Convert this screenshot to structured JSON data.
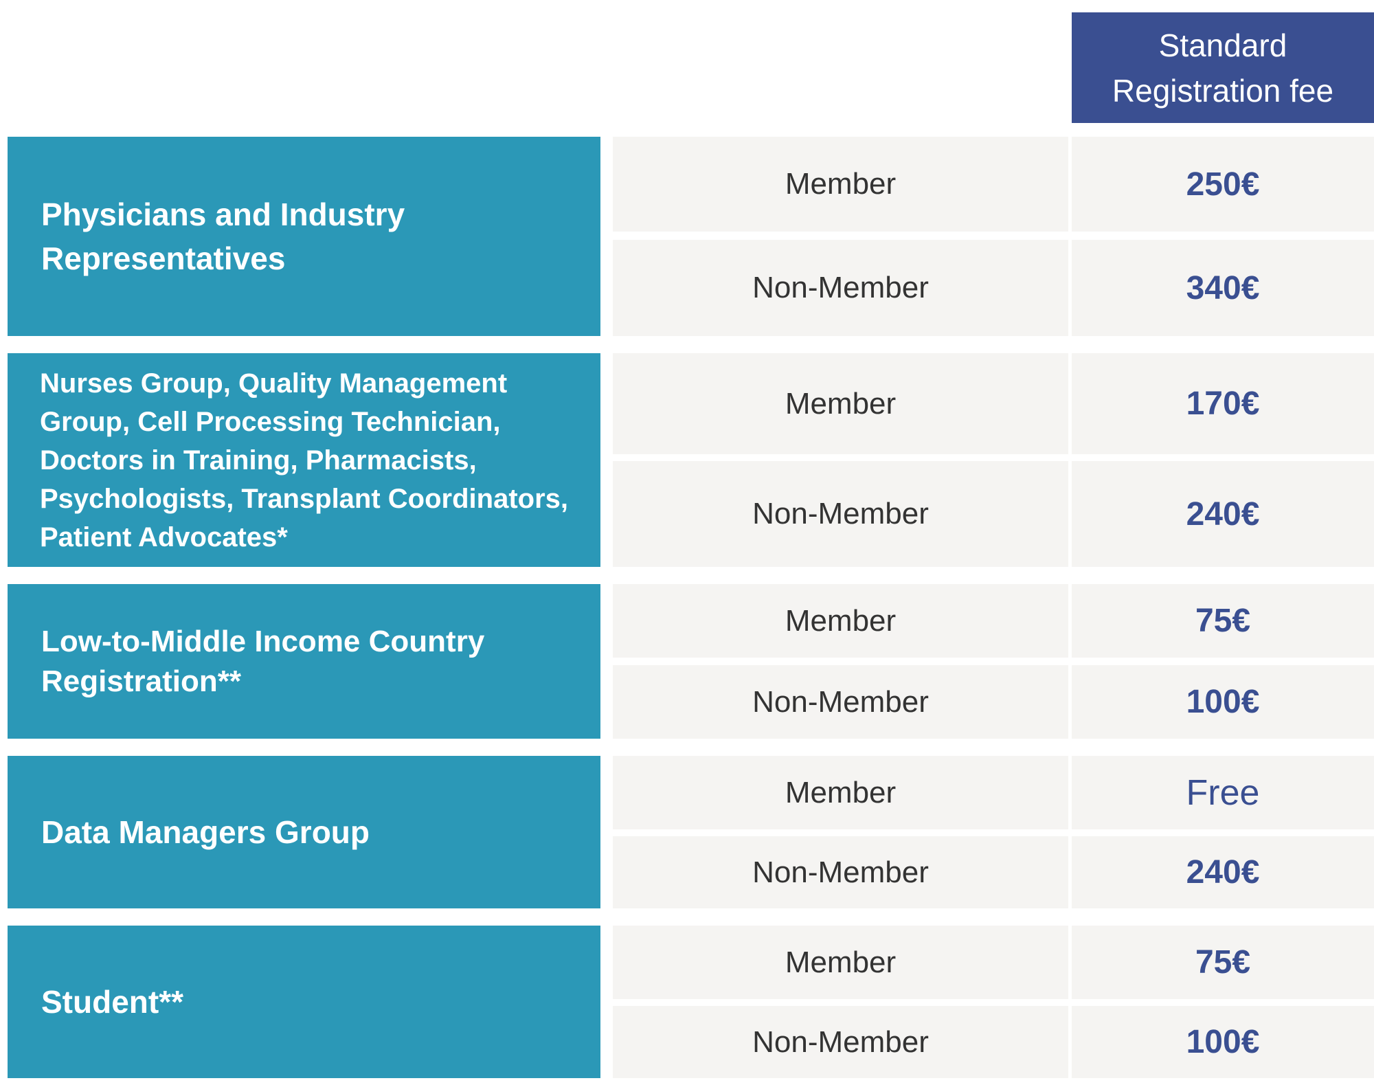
{
  "header": {
    "line1": "Standard",
    "line2": "Registration fee"
  },
  "groups": [
    {
      "category": "Physicians and Industry Representatives",
      "rows": [
        {
          "type": "Member",
          "fee": "250€"
        },
        {
          "type": "Non-Member",
          "fee": "340€"
        }
      ]
    },
    {
      "category": "Nurses Group, Quality Management Group, Cell Processing Technician, Doctors in Training, Pharmacists, Psychologists, Transplant Coordinators, Patient Advocates*",
      "rows": [
        {
          "type": "Member",
          "fee": "170€"
        },
        {
          "type": "Non-Member",
          "fee": "240€"
        }
      ]
    },
    {
      "category": "Low-to-Middle Income Country Registration**",
      "rows": [
        {
          "type": "Member",
          "fee": "75€"
        },
        {
          "type": "Non-Member",
          "fee": "100€"
        }
      ]
    },
    {
      "category": "Data Managers Group",
      "rows": [
        {
          "type": "Member",
          "fee": "Free"
        },
        {
          "type": "Non-Member",
          "fee": "240€"
        }
      ]
    },
    {
      "category": "Student**",
      "rows": [
        {
          "type": "Member",
          "fee": "75€"
        },
        {
          "type": "Non-Member",
          "fee": "100€"
        }
      ]
    }
  ]
}
